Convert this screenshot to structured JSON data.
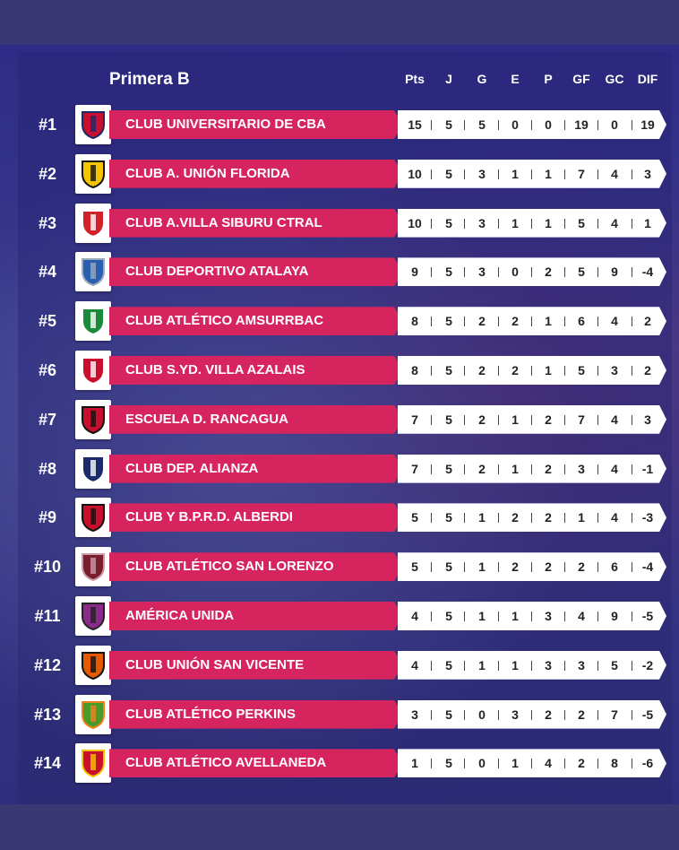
{
  "title": "Primera B",
  "columns": [
    "Pts",
    "J",
    "G",
    "E",
    "P",
    "GF",
    "GC",
    "DIF"
  ],
  "colors": {
    "name_bar": "#d6245f",
    "stats_bar": "#ffffff",
    "background": "#2e2c86"
  },
  "rows": [
    {
      "pos": "#1",
      "team": "CLUB UNIVERSITARIO DE CBA",
      "stats": [
        "15",
        "5",
        "5",
        "0",
        "0",
        "19",
        "0",
        "19"
      ],
      "logo": "u-crest-icon"
    },
    {
      "pos": "#2",
      "team": "CLUB A. UNIÓN FLORIDA",
      "stats": [
        "10",
        "5",
        "3",
        "1",
        "1",
        "7",
        "4",
        "3"
      ],
      "logo": "yellow-black-shield-icon"
    },
    {
      "pos": "#3",
      "team": "CLUB A.VILLA SIBURU CTRAL",
      "stats": [
        "10",
        "5",
        "3",
        "1",
        "1",
        "5",
        "4",
        "1"
      ],
      "logo": "red-white-shield-icon"
    },
    {
      "pos": "#4",
      "team": "CLUB DEPORTIVO ATALAYA",
      "stats": [
        "9",
        "5",
        "3",
        "0",
        "2",
        "5",
        "9",
        "-4"
      ],
      "logo": "blue-emblem-icon"
    },
    {
      "pos": "#5",
      "team": "CLUB ATLÉTICO AMSURRBAC",
      "stats": [
        "8",
        "5",
        "2",
        "2",
        "1",
        "6",
        "4",
        "2"
      ],
      "logo": "green-stripes-icon"
    },
    {
      "pos": "#6",
      "team": "CLUB S.YD. VILLA AZALAIS",
      "stats": [
        "8",
        "5",
        "2",
        "2",
        "1",
        "5",
        "3",
        "2"
      ],
      "logo": "red-sash-shield-icon"
    },
    {
      "pos": "#7",
      "team": "ESCUELA D. RANCAGUA",
      "stats": [
        "7",
        "5",
        "2",
        "1",
        "2",
        "7",
        "4",
        "3"
      ],
      "logo": "red-black-shield-icon"
    },
    {
      "pos": "#8",
      "team": "CLUB DEP. ALIANZA",
      "stats": [
        "7",
        "5",
        "2",
        "1",
        "2",
        "3",
        "4",
        "-1"
      ],
      "logo": "striped-shield-icon"
    },
    {
      "pos": "#9",
      "team": "CLUB Y B.P.R.D. ALBERDI",
      "stats": [
        "5",
        "5",
        "1",
        "2",
        "2",
        "1",
        "4",
        "-3"
      ],
      "logo": "red-black-emblem-icon"
    },
    {
      "pos": "#10",
      "team": "CLUB ATLÉTICO SAN LORENZO",
      "stats": [
        "5",
        "5",
        "1",
        "2",
        "2",
        "2",
        "6",
        "-4"
      ],
      "logo": "maroon-circle-icon"
    },
    {
      "pos": "#11",
      "team": "AMÉRICA UNIDA",
      "stats": [
        "4",
        "5",
        "1",
        "1",
        "3",
        "4",
        "9",
        "-5"
      ],
      "logo": "star-figure-icon"
    },
    {
      "pos": "#12",
      "team": "CLUB UNIÓN SAN VICENTE",
      "stats": [
        "4",
        "5",
        "1",
        "1",
        "3",
        "3",
        "5",
        "-2"
      ],
      "logo": "usv-badge-icon"
    },
    {
      "pos": "#13",
      "team": "CLUB ATLÉTICO PERKINS",
      "stats": [
        "3",
        "5",
        "0",
        "3",
        "2",
        "2",
        "7",
        "-5"
      ],
      "logo": "green-orange-shield-icon"
    },
    {
      "pos": "#14",
      "team": "CLUB ATLÉTICO AVELLANEDA",
      "stats": [
        "1",
        "5",
        "0",
        "1",
        "4",
        "2",
        "8",
        "-6"
      ],
      "logo": "red-crest-icon"
    }
  ]
}
